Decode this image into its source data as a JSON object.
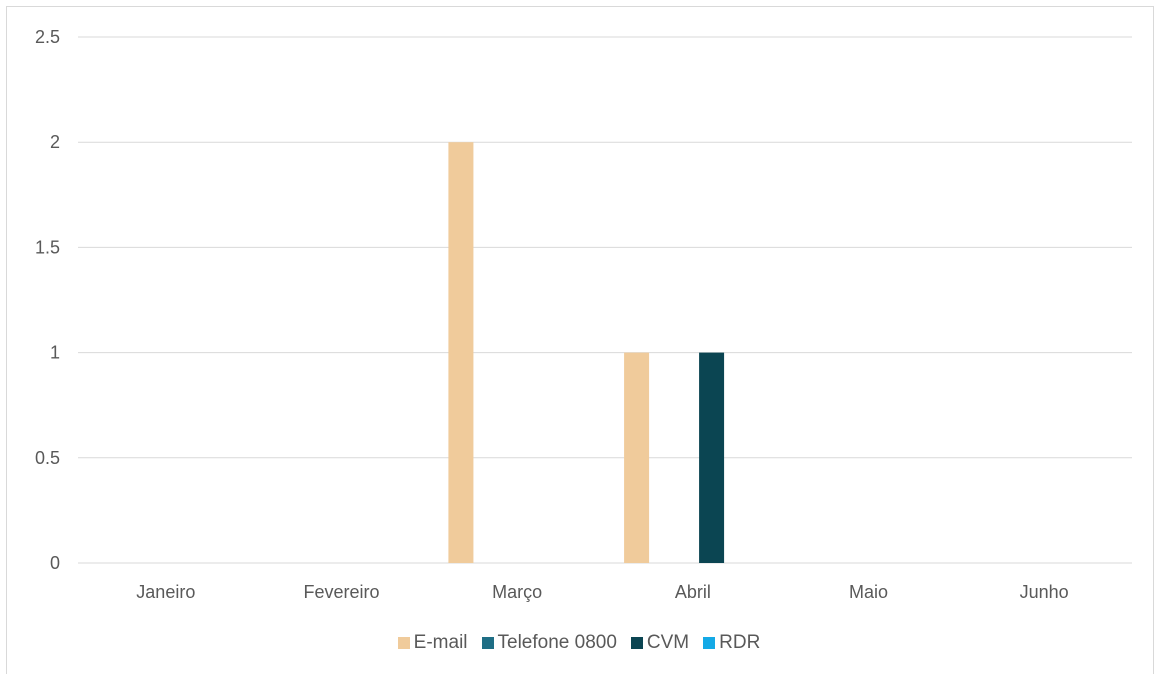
{
  "chart_data": {
    "type": "bar",
    "categories": [
      "Janeiro",
      "Fevereiro",
      "Março",
      "Abril",
      "Maio",
      "Junho"
    ],
    "series": [
      {
        "name": "E-mail",
        "values": [
          0,
          0,
          2,
          1,
          0,
          0
        ],
        "color": "#f0cb9b"
      },
      {
        "name": "Telefone 0800",
        "values": [
          0,
          0,
          0,
          0,
          0,
          0
        ],
        "color": "#1f6e85"
      },
      {
        "name": "CVM",
        "values": [
          0,
          0,
          0,
          1,
          0,
          0
        ],
        "color": "#0b4552"
      },
      {
        "name": "RDR",
        "values": [
          0,
          0,
          0,
          0,
          0,
          0
        ],
        "color": "#14a9e6"
      }
    ],
    "ylim": [
      0,
      2.5
    ],
    "yticks": [
      "0",
      "0.5",
      "1",
      "1.5",
      "2",
      "2.5"
    ],
    "grid": true,
    "legend_position": "bottom",
    "title": "",
    "xlabel": "",
    "ylabel": ""
  }
}
